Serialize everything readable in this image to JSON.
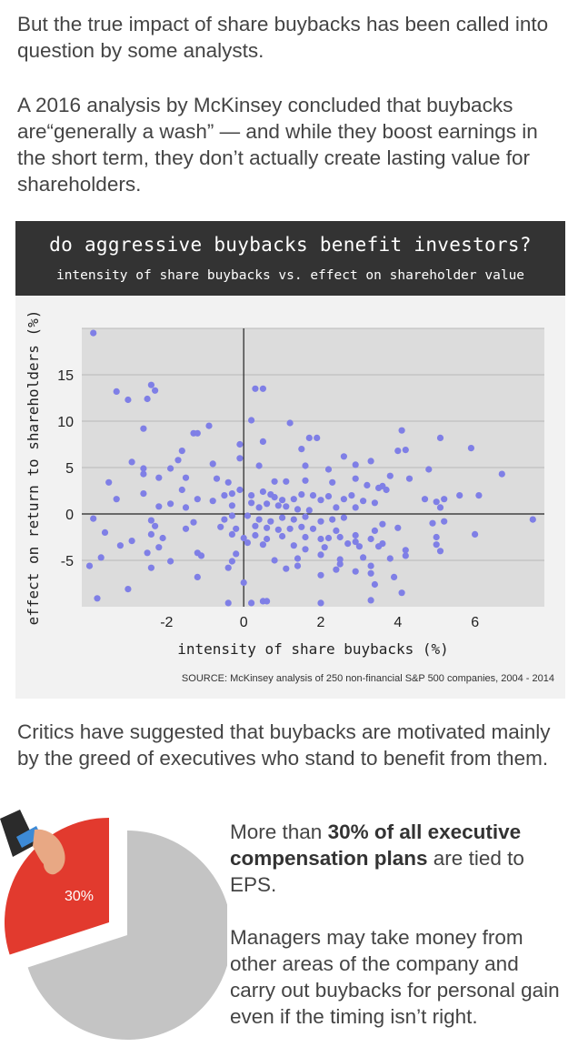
{
  "intro": {
    "p1": "But the true impact of share buybacks has been called into question by some analysts.",
    "p2": "A 2016 analysis by McKinsey concluded that buybacks are“generally a wash” — and while they boost earnings in the short term, they don’t actually create lasting value for shareholders."
  },
  "chart_data": {
    "type": "scatter",
    "title": "do aggressive buybacks benefit investors?",
    "subtitle": "intensity of share buybacks vs. effect on shareholder value",
    "xlabel": "intensity of share buybacks (%)",
    "ylabel": "effect on return to shareholders (%)",
    "xlim": [
      -4.2,
      7.8
    ],
    "ylim": [
      -10,
      20
    ],
    "x_ticks": [
      -2,
      0,
      2,
      4,
      6
    ],
    "y_ticks": [
      -5,
      0,
      5,
      10,
      15
    ],
    "grid": "horizontal",
    "point_color": "#7f7fe6",
    "source": "SOURCE: McKinsey analysis of 250 non-financial S&P 500 companies, 2004 - 2014",
    "points": [
      [
        -3.9,
        19.5
      ],
      [
        -3.3,
        13.2
      ],
      [
        -2.4,
        13.9
      ],
      [
        -2.3,
        13.3
      ],
      [
        -2.5,
        12.4
      ],
      [
        -3.0,
        12.3
      ],
      [
        0.3,
        13.5
      ],
      [
        0.5,
        13.5
      ],
      [
        0.2,
        10.1
      ],
      [
        1.2,
        9.8
      ],
      [
        -2.6,
        9.2
      ],
      [
        -0.9,
        9.5
      ],
      [
        -1.3,
        8.7
      ],
      [
        -1.2,
        8.7
      ],
      [
        1.7,
        8.2
      ],
      [
        1.9,
        8.2
      ],
      [
        4.1,
        9.0
      ],
      [
        5.1,
        8.2
      ],
      [
        5.9,
        7.1
      ],
      [
        4.2,
        6.9
      ],
      [
        4.0,
        6.8
      ],
      [
        0.5,
        7.8
      ],
      [
        -0.1,
        7.5
      ],
      [
        1.5,
        7.0
      ],
      [
        -1.6,
        6.8
      ],
      [
        -0.1,
        6.0
      ],
      [
        -1.7,
        5.8
      ],
      [
        -2.9,
        5.6
      ],
      [
        -3.5,
        3.4
      ],
      [
        -2.6,
        4.9
      ],
      [
        -1.9,
        4.9
      ],
      [
        -0.8,
        5.4
      ],
      [
        0.4,
        5.2
      ],
      [
        1.6,
        5.2
      ],
      [
        2.2,
        4.8
      ],
      [
        2.6,
        6.2
      ],
      [
        3.3,
        5.7
      ],
      [
        2.9,
        5.3
      ],
      [
        3.8,
        4.1
      ],
      [
        4.3,
        3.8
      ],
      [
        4.8,
        4.8
      ],
      [
        6.7,
        4.3
      ],
      [
        -2.6,
        4.3
      ],
      [
        -2.2,
        3.9
      ],
      [
        -1.5,
        3.9
      ],
      [
        -0.7,
        3.8
      ],
      [
        -0.4,
        3.4
      ],
      [
        0.8,
        3.5
      ],
      [
        1.1,
        3.5
      ],
      [
        1.6,
        3.6
      ],
      [
        2.3,
        3.4
      ],
      [
        2.9,
        3.8
      ],
      [
        3.2,
        3.1
      ],
      [
        3.5,
        2.8
      ],
      [
        3.6,
        3.0
      ],
      [
        3.7,
        2.6
      ],
      [
        5.6,
        2.0
      ],
      [
        6.1,
        2.0
      ],
      [
        -1.6,
        2.6
      ],
      [
        -2.6,
        2.2
      ],
      [
        -3.3,
        1.6
      ],
      [
        -1.2,
        1.6
      ],
      [
        -0.8,
        1.4
      ],
      [
        -0.5,
        2.0
      ],
      [
        -0.3,
        2.2
      ],
      [
        -0.1,
        2.6
      ],
      [
        0.2,
        2.0
      ],
      [
        0.5,
        2.4
      ],
      [
        0.7,
        2.1
      ],
      [
        0.8,
        1.8
      ],
      [
        1.0,
        1.5
      ],
      [
        1.3,
        1.6
      ],
      [
        1.5,
        2.1
      ],
      [
        1.8,
        2.0
      ],
      [
        2.0,
        1.5
      ],
      [
        2.2,
        1.9
      ],
      [
        2.6,
        1.6
      ],
      [
        2.8,
        2.0
      ],
      [
        3.1,
        1.4
      ],
      [
        3.4,
        1.2
      ],
      [
        4.7,
        1.6
      ],
      [
        5.0,
        1.3
      ],
      [
        5.2,
        1.6
      ],
      [
        -2.2,
        0.8
      ],
      [
        -1.9,
        1.1
      ],
      [
        -1.5,
        0.7
      ],
      [
        -0.3,
        0.9
      ],
      [
        0.2,
        1.2
      ],
      [
        0.4,
        0.7
      ],
      [
        0.6,
        1.1
      ],
      [
        0.9,
        0.9
      ],
      [
        1.1,
        0.8
      ],
      [
        1.4,
        0.5
      ],
      [
        1.7,
        0.4
      ],
      [
        2.4,
        0.7
      ],
      [
        2.9,
        0.7
      ],
      [
        5.1,
        0.7
      ],
      [
        -3.9,
        -0.5
      ],
      [
        -2.4,
        -0.7
      ],
      [
        -1.3,
        -0.9
      ],
      [
        -0.5,
        -0.6
      ],
      [
        -0.3,
        -0.2
      ],
      [
        0.1,
        -0.2
      ],
      [
        0.4,
        -0.6
      ],
      [
        0.7,
        -0.8
      ],
      [
        1.0,
        -0.4
      ],
      [
        1.3,
        -0.6
      ],
      [
        1.6,
        -0.3
      ],
      [
        2.0,
        -0.8
      ],
      [
        2.3,
        -0.6
      ],
      [
        2.6,
        -0.4
      ],
      [
        3.6,
        -1.1
      ],
      [
        4.0,
        -1.5
      ],
      [
        4.9,
        -1.0
      ],
      [
        5.2,
        -0.8
      ],
      [
        7.5,
        -0.6
      ],
      [
        -2.3,
        -1.3
      ],
      [
        -1.5,
        -1.6
      ],
      [
        -0.6,
        -1.4
      ],
      [
        -0.2,
        -1.6
      ],
      [
        0.3,
        -1.3
      ],
      [
        0.6,
        -1.5
      ],
      [
        0.9,
        -1.7
      ],
      [
        1.2,
        -1.6
      ],
      [
        1.5,
        -1.4
      ],
      [
        1.8,
        -1.6
      ],
      [
        2.4,
        -1.8
      ],
      [
        2.9,
        -2.3
      ],
      [
        3.4,
        -1.8
      ],
      [
        -3.6,
        -2.0
      ],
      [
        -2.4,
        -2.2
      ],
      [
        -2.9,
        -2.9
      ],
      [
        -2.1,
        -2.6
      ],
      [
        -0.3,
        -2.2
      ],
      [
        0.0,
        -2.6
      ],
      [
        0.3,
        -2.3
      ],
      [
        0.6,
        -2.7
      ],
      [
        1.0,
        -2.4
      ],
      [
        1.6,
        -2.5
      ],
      [
        2.0,
        -2.7
      ],
      [
        2.2,
        -2.6
      ],
      [
        2.5,
        -2.5
      ],
      [
        2.9,
        -3.0
      ],
      [
        3.3,
        -2.7
      ],
      [
        3.6,
        -3.2
      ],
      [
        5.0,
        -2.5
      ],
      [
        6.0,
        -2.2
      ],
      [
        -3.2,
        -3.4
      ],
      [
        -2.2,
        -3.6
      ],
      [
        0.1,
        -3.1
      ],
      [
        0.5,
        -3.3
      ],
      [
        1.3,
        -3.4
      ],
      [
        1.6,
        -3.8
      ],
      [
        2.1,
        -3.6
      ],
      [
        2.7,
        -3.2
      ],
      [
        3.0,
        -3.5
      ],
      [
        3.5,
        -3.5
      ],
      [
        4.2,
        -3.9
      ],
      [
        5.0,
        -3.3
      ],
      [
        -2.5,
        -4.2
      ],
      [
        -1.1,
        -4.5
      ],
      [
        -1.2,
        -4.2
      ],
      [
        -0.2,
        -4.3
      ],
      [
        0.8,
        -5.0
      ],
      [
        1.4,
        -4.8
      ],
      [
        2.0,
        -4.4
      ],
      [
        2.5,
        -4.9
      ],
      [
        3.1,
        -4.7
      ],
      [
        3.8,
        -4.8
      ],
      [
        4.2,
        -4.5
      ],
      [
        5.1,
        -4.0
      ],
      [
        -3.7,
        -4.7
      ],
      [
        -1.9,
        -5.1
      ],
      [
        -0.3,
        -5.1
      ],
      [
        2.5,
        -5.4
      ],
      [
        3.3,
        -5.6
      ],
      [
        -4.0,
        -5.6
      ],
      [
        -2.4,
        -5.8
      ],
      [
        -0.4,
        -5.8
      ],
      [
        1.1,
        -5.9
      ],
      [
        2.4,
        -6.0
      ],
      [
        1.4,
        -5.6
      ],
      [
        2.0,
        -6.6
      ],
      [
        2.9,
        -6.2
      ],
      [
        3.3,
        -6.4
      ],
      [
        -1.2,
        -6.8
      ],
      [
        3.9,
        -6.8
      ],
      [
        0.0,
        -7.4
      ],
      [
        3.4,
        -7.6
      ],
      [
        -3.0,
        -8.1
      ],
      [
        4.1,
        -8.5
      ],
      [
        -3.8,
        -9.1
      ],
      [
        -0.4,
        -9.6
      ],
      [
        0.2,
        -9.6
      ],
      [
        0.5,
        -9.4
      ],
      [
        0.6,
        -9.4
      ],
      [
        2.0,
        -9.6
      ],
      [
        3.3,
        -9.3
      ]
    ]
  },
  "critics_text": "Critics have suggested that buybacks are motivated mainly by the greed of executives who stand to benefit from them.",
  "pie": {
    "label": "30%",
    "value": 30,
    "slice_color": "#e23a2e",
    "rest_color": "#c4c4c4"
  },
  "side": {
    "p1_pre": "More than ",
    "p1_bold": "30% of all executive compensation plans",
    "p1_post": " are tied to EPS.",
    "p2": "Managers may take money from other areas of the company and carry out buybacks for personal gain even if the timing isn’t right."
  }
}
